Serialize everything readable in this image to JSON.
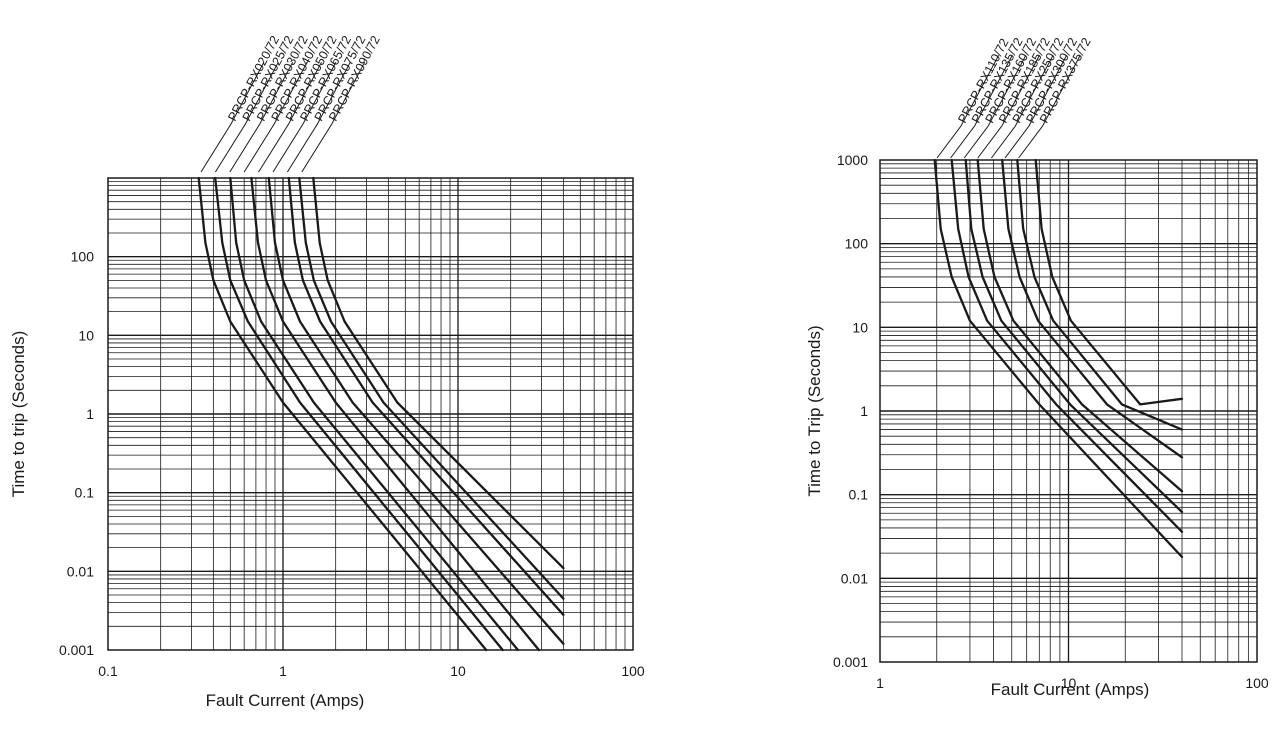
{
  "chart_data": [
    {
      "type": "line",
      "title": "",
      "xlabel": "Fault Current (Amps)",
      "ylabel": "Time to trip (Seconds)",
      "xscale": "log",
      "yscale": "log",
      "xlim": [
        0.1,
        100
      ],
      "ylim": [
        0.001,
        1000
      ],
      "grid": true,
      "xticks": [
        "0.1",
        "1",
        "10",
        "100"
      ],
      "yticks": [
        "0.001",
        "0.01",
        "0.1",
        "1",
        "10",
        "100"
      ],
      "series": [
        {
          "name": "PRCP-RX020/72",
          "x": [
            0.33,
            0.36,
            0.4,
            0.5,
            1,
            14.5
          ],
          "y": [
            1000,
            150,
            50,
            15,
            1.4,
            0.001
          ]
        },
        {
          "name": "PRCP-RX025/72",
          "x": [
            0.41,
            0.45,
            0.5,
            0.63,
            1.25,
            18
          ],
          "y": [
            1000,
            150,
            50,
            15,
            1.4,
            0.001
          ]
        },
        {
          "name": "PRCP-RX030/72",
          "x": [
            0.5,
            0.54,
            0.6,
            0.75,
            1.5,
            22
          ],
          "y": [
            1000,
            150,
            50,
            15,
            1.4,
            0.001
          ]
        },
        {
          "name": "PRCP-RX040/72",
          "x": [
            0.66,
            0.72,
            0.8,
            1.0,
            2.0,
            29
          ],
          "y": [
            1000,
            150,
            50,
            15,
            1.4,
            0.001
          ]
        },
        {
          "name": "PRCP-RX050/72",
          "x": [
            0.83,
            0.9,
            1.0,
            1.25,
            2.5,
            40
          ],
          "y": [
            1000,
            150,
            50,
            15,
            1.4,
            0.0012
          ]
        },
        {
          "name": "PRCP-RX065/72",
          "x": [
            1.08,
            1.17,
            1.3,
            1.63,
            3.25,
            40
          ],
          "y": [
            1000,
            150,
            50,
            15,
            1.4,
            0.0028
          ]
        },
        {
          "name": "PRCP-RX075/72",
          "x": [
            1.24,
            1.35,
            1.5,
            1.88,
            3.75,
            40
          ],
          "y": [
            1000,
            150,
            50,
            15,
            1.4,
            0.0045
          ]
        },
        {
          "name": "PRCP-RX090/72",
          "x": [
            1.49,
            1.62,
            1.8,
            2.25,
            4.5,
            40
          ],
          "y": [
            1000,
            150,
            50,
            15,
            1.4,
            0.011
          ]
        }
      ]
    },
    {
      "type": "line",
      "title": "",
      "xlabel": "Fault Current (Amps)",
      "ylabel": "Time to Trip (Seconds)",
      "xscale": "log",
      "yscale": "log",
      "xlim": [
        1,
        100
      ],
      "ylim": [
        0.001,
        1000
      ],
      "grid": true,
      "xticks": [
        "1",
        "10",
        "100"
      ],
      "yticks": [
        "0.001",
        "0.01",
        "0.1",
        "1",
        "10",
        "100",
        "1000"
      ],
      "series": [
        {
          "name": "PRCP-RX110/72",
          "x": [
            1.95,
            2.1,
            2.4,
            3.0,
            7.0,
            40
          ],
          "y": [
            1000,
            150,
            40,
            12,
            1.2,
            0.018
          ]
        },
        {
          "name": "PRCP-RX135/72",
          "x": [
            2.4,
            2.6,
            2.95,
            3.7,
            8.6,
            40
          ],
          "y": [
            1000,
            150,
            40,
            12,
            1.2,
            0.036
          ]
        },
        {
          "name": "PRCP-RX160/72",
          "x": [
            2.85,
            3.05,
            3.5,
            4.4,
            10.2,
            40
          ],
          "y": [
            1000,
            150,
            40,
            12,
            1.2,
            0.062
          ]
        },
        {
          "name": "PRCP-RX185/72",
          "x": [
            3.3,
            3.55,
            4.05,
            5.1,
            11.8,
            40
          ],
          "y": [
            1000,
            150,
            40,
            12,
            1.2,
            0.11
          ]
        },
        {
          "name": "PRCP-RX250/72",
          "x": [
            4.45,
            4.8,
            5.5,
            6.9,
            16,
            40
          ],
          "y": [
            1000,
            150,
            40,
            12,
            1.2,
            0.28
          ]
        },
        {
          "name": "PRCP-RX300/72",
          "x": [
            5.35,
            5.75,
            6.6,
            8.3,
            19.2,
            40
          ],
          "y": [
            1000,
            150,
            40,
            12,
            1.2,
            0.6
          ]
        },
        {
          "name": "PRCP-RX375/72",
          "x": [
            6.7,
            7.2,
            8.2,
            10.3,
            24,
            40
          ],
          "y": [
            1000,
            150,
            40,
            12,
            1.2,
            1.4
          ]
        }
      ]
    }
  ]
}
